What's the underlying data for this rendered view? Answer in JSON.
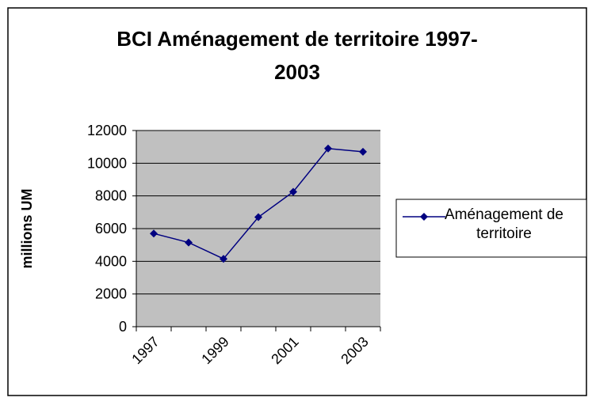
{
  "chart_data": {
    "type": "line",
    "title": [
      "BCI Aménagement de territoire  1997-",
      "2003"
    ],
    "y_label": "millions UM",
    "categories": [
      "1997",
      null,
      "1999",
      null,
      "2001",
      null,
      "2003"
    ],
    "series": [
      {
        "name": "Aménagement de territoire",
        "color": "#000080",
        "values": [
          5700,
          5150,
          4150,
          6700,
          8250,
          10900,
          10700
        ]
      }
    ],
    "ylim": [
      0,
      12000
    ],
    "yticks": [
      0,
      2000,
      4000,
      6000,
      8000,
      10000,
      12000
    ],
    "grid": true,
    "legend": "right"
  }
}
